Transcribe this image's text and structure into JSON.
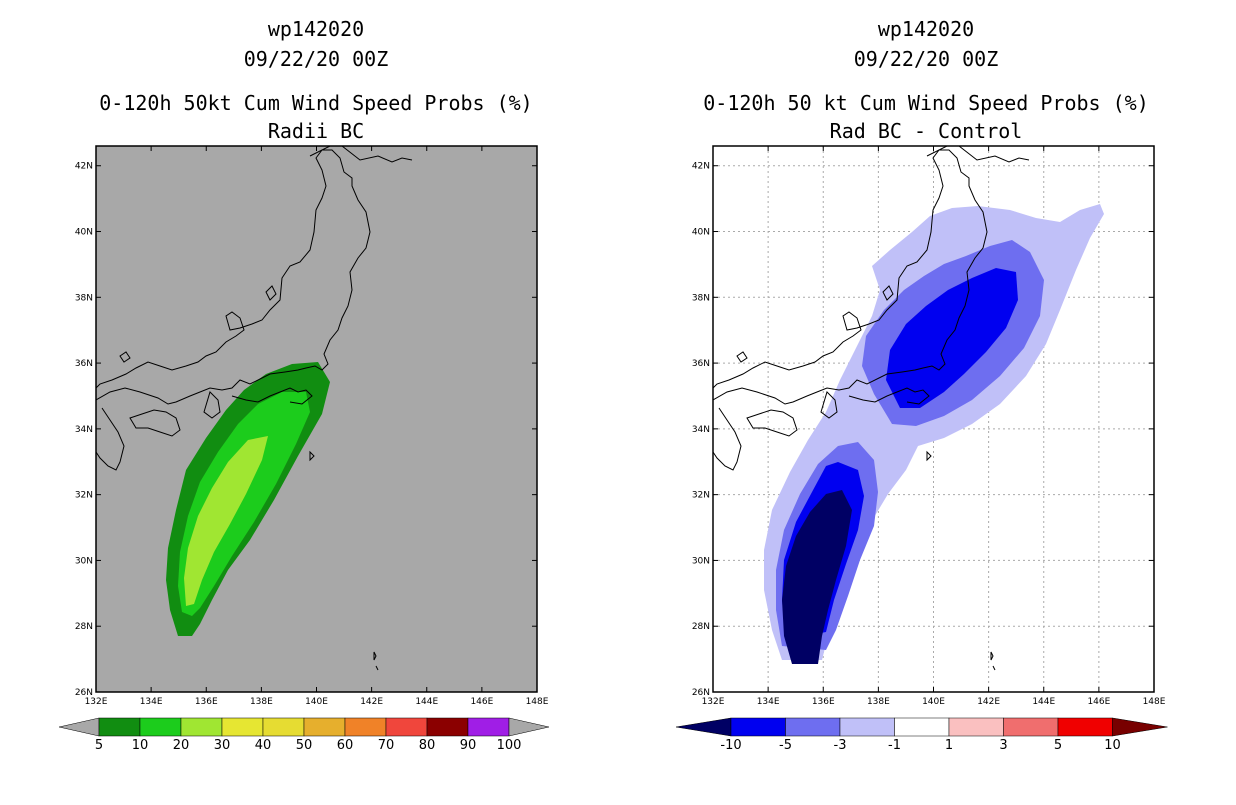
{
  "left": {
    "title_line1": "wp142020",
    "title_line2": "09/22/20 00Z",
    "title_line3": "0-120h 50kt Cum Wind Speed Probs (%)",
    "title_line4": "Radii BC",
    "colorbar_labels": [
      "5",
      "10",
      "20",
      "30",
      "40",
      "50",
      "60",
      "70",
      "80",
      "90",
      "100"
    ],
    "colors": {
      "background": "#a8a8a8",
      "bin_5": "#118d11",
      "bin_10": "#1ccc1c",
      "bin_20": "#a0e632",
      "bin_30": "#e6e632",
      "bin_40": "#e6dc32",
      "bin_50": "#e6af2d",
      "bin_60": "#f08228",
      "bin_70": "#f0463c",
      "bin_80": "#8b0000",
      "bin_90": "#a01ee6"
    }
  },
  "right": {
    "title_line1": "wp142020",
    "title_line2": "09/22/20 00Z",
    "title_line3": "0-120h 50 kt Cum Wind Speed Probs (%)",
    "title_line4": "Rad BC - Control",
    "colorbar_labels": [
      "-10",
      "-5",
      "-3",
      "-1",
      "1",
      "3",
      "5",
      "10"
    ],
    "colors": {
      "lt_-10": "#000064",
      "-10_-5": "#0000f0",
      "-5_-3": "#6e6ef0",
      "-3_-1": "#c0c0f8",
      "-1_1": "#ffffff",
      "1_3": "#fac0c0",
      "3_5": "#f06e6e",
      "5_10": "#f00000",
      "gt_10": "#780000"
    }
  },
  "axes": {
    "lon_labels": [
      "132E",
      "134E",
      "136E",
      "138E",
      "140E",
      "142E",
      "144E",
      "146E",
      "148E"
    ],
    "lat_labels": [
      "26N",
      "28N",
      "30N",
      "32N",
      "34N",
      "36N",
      "38N",
      "40N",
      "42N"
    ]
  }
}
